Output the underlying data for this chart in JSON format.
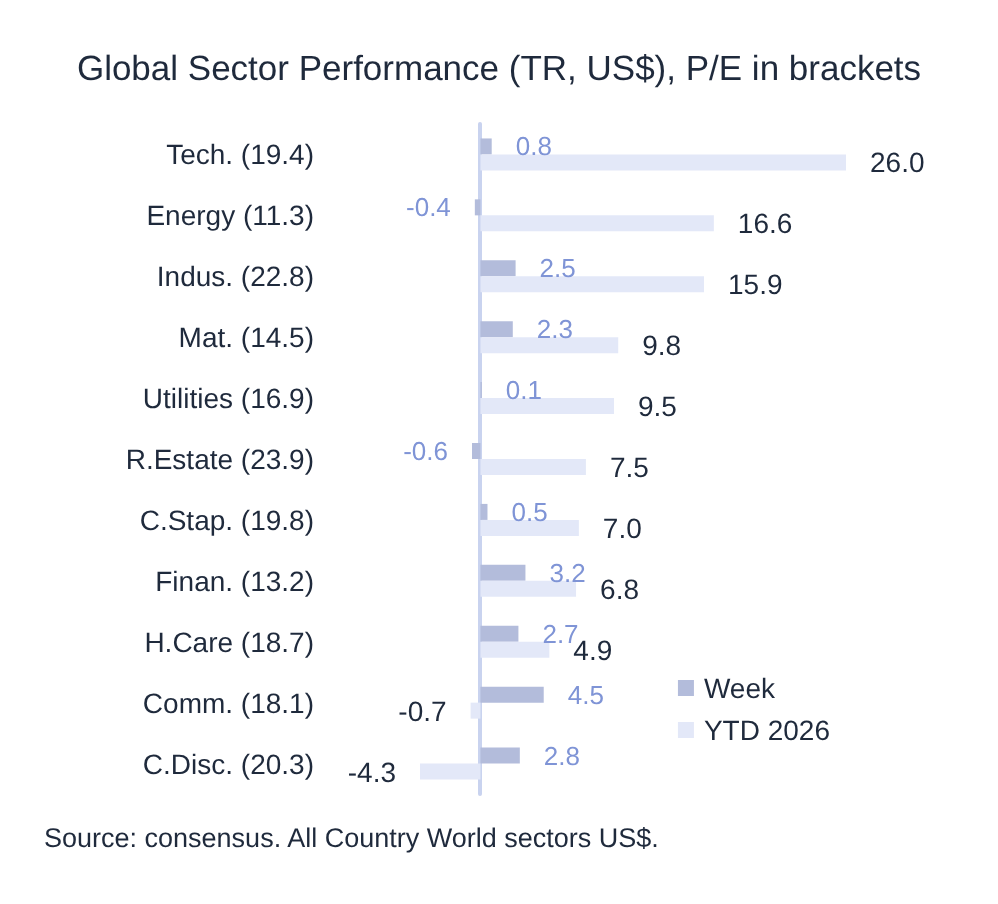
{
  "chart_data": {
    "type": "bar",
    "orientation": "horizontal",
    "title": "Global Sector Performance (TR, US$), P/E in brackets",
    "categories": [
      "Tech. (19.4)",
      "Energy (11.3)",
      "Indus. (22.8)",
      "Mat. (14.5)",
      "Utilities (16.9)",
      "R.Estate (23.9)",
      "C.Stap. (19.8)",
      "Finan. (13.2)",
      "H.Care (18.7)",
      "Comm. (18.1)",
      "C.Disc. (20.3)"
    ],
    "series": [
      {
        "name": "Week",
        "color": "#b3bcdb",
        "values": [
          0.8,
          -0.4,
          2.5,
          2.3,
          0.1,
          -0.6,
          0.5,
          3.2,
          2.7,
          4.5,
          2.8
        ],
        "value_labels": [
          "0.8",
          "-0.4",
          "2.5",
          "2.3",
          "0.1",
          "-0.6",
          "0.5",
          "3.2",
          "2.7",
          "4.5",
          "2.8"
        ]
      },
      {
        "name": "YTD 2026",
        "color": "#e3e8f8",
        "values": [
          26.0,
          16.6,
          15.9,
          9.8,
          9.5,
          7.5,
          7.0,
          6.8,
          4.9,
          -0.7,
          -4.3
        ],
        "value_labels": [
          "26.0",
          "16.6",
          "15.9",
          "9.8",
          "9.5",
          "7.5",
          "7.0",
          "6.8",
          "4.9",
          "-0.7",
          "-4.3"
        ]
      }
    ],
    "legend": "bottom right",
    "grid": false,
    "tick_labels": "y",
    "annotations": [
      "Source: consensus. All Country World sectors US$."
    ]
  }
}
